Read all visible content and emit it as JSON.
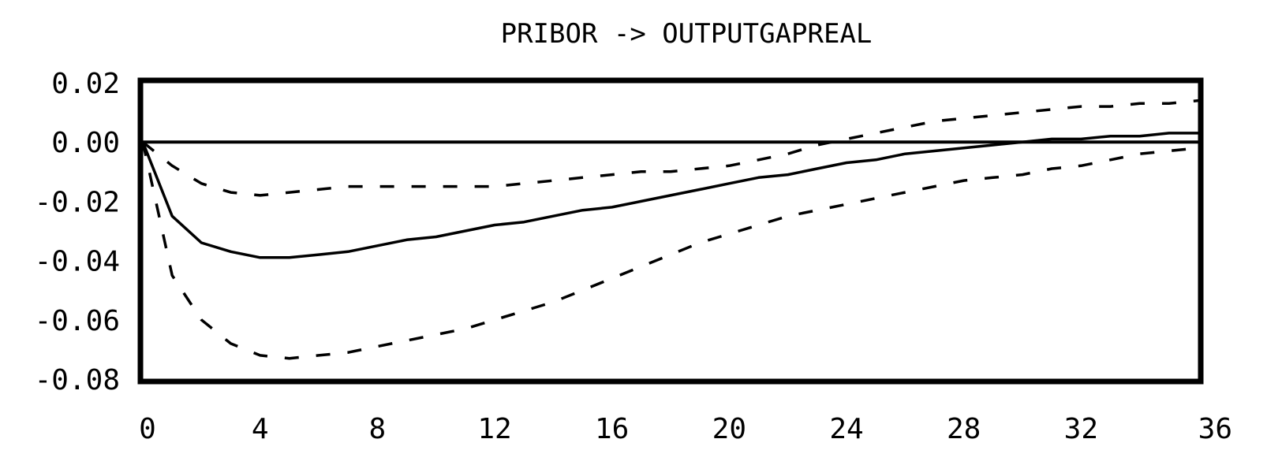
{
  "chart_data": {
    "type": "line",
    "title": "PRIBOR -> OUTPUTGAPREAL",
    "xlabel": "",
    "ylabel": "",
    "xlim": [
      0,
      36
    ],
    "ylim": [
      -0.08,
      0.02
    ],
    "x_ticks": [
      0,
      4,
      8,
      12,
      16,
      20,
      24,
      28,
      32,
      36
    ],
    "x_tick_labels": [
      "0",
      "4",
      "8",
      "12",
      "16",
      "20",
      "24",
      "28",
      "32",
      "36"
    ],
    "y_ticks": [
      0.02,
      0.0,
      -0.02,
      -0.04,
      -0.06,
      -0.08
    ],
    "y_tick_labels": [
      "0.02",
      "0.00",
      "-0.02",
      "-0.04",
      "-0.06",
      "-0.08"
    ],
    "zero_line": 0,
    "grid": false,
    "legend": "none",
    "colors": {
      "line": "#000000",
      "background": "#ffffff"
    },
    "x": [
      0,
      1,
      2,
      3,
      4,
      5,
      6,
      7,
      8,
      9,
      10,
      11,
      12,
      13,
      14,
      15,
      16,
      17,
      18,
      19,
      20,
      21,
      22,
      23,
      24,
      25,
      26,
      27,
      28,
      29,
      30,
      31,
      32,
      33,
      34,
      35,
      36
    ],
    "series": [
      {
        "style": "solid",
        "values": [
          0.0,
          -0.025,
          -0.034,
          -0.037,
          -0.039,
          -0.039,
          -0.038,
          -0.037,
          -0.035,
          -0.033,
          -0.032,
          -0.03,
          -0.028,
          -0.027,
          -0.025,
          -0.023,
          -0.022,
          -0.02,
          -0.018,
          -0.016,
          -0.014,
          -0.012,
          -0.011,
          -0.009,
          -0.007,
          -0.006,
          -0.004,
          -0.003,
          -0.002,
          -0.001,
          0.0,
          0.001,
          0.001,
          0.002,
          0.002,
          0.003,
          0.003
        ]
      },
      {
        "style": "dashed",
        "values": [
          0.0,
          -0.008,
          -0.014,
          -0.017,
          -0.018,
          -0.017,
          -0.016,
          -0.015,
          -0.015,
          -0.015,
          -0.015,
          -0.015,
          -0.015,
          -0.014,
          -0.013,
          -0.012,
          -0.011,
          -0.01,
          -0.01,
          -0.009,
          -0.008,
          -0.006,
          -0.004,
          -0.001,
          0.001,
          0.003,
          0.005,
          0.007,
          0.008,
          0.009,
          0.01,
          0.011,
          0.012,
          0.012,
          0.013,
          0.013,
          0.014
        ]
      },
      {
        "style": "dashed",
        "values": [
          0.0,
          -0.045,
          -0.06,
          -0.068,
          -0.072,
          -0.073,
          -0.072,
          -0.071,
          -0.069,
          -0.067,
          -0.065,
          -0.063,
          -0.06,
          -0.057,
          -0.054,
          -0.05,
          -0.046,
          -0.042,
          -0.038,
          -0.034,
          -0.031,
          -0.028,
          -0.025,
          -0.023,
          -0.021,
          -0.019,
          -0.017,
          -0.015,
          -0.013,
          -0.012,
          -0.011,
          -0.009,
          -0.008,
          -0.006,
          -0.004,
          -0.003,
          -0.002
        ]
      }
    ]
  }
}
